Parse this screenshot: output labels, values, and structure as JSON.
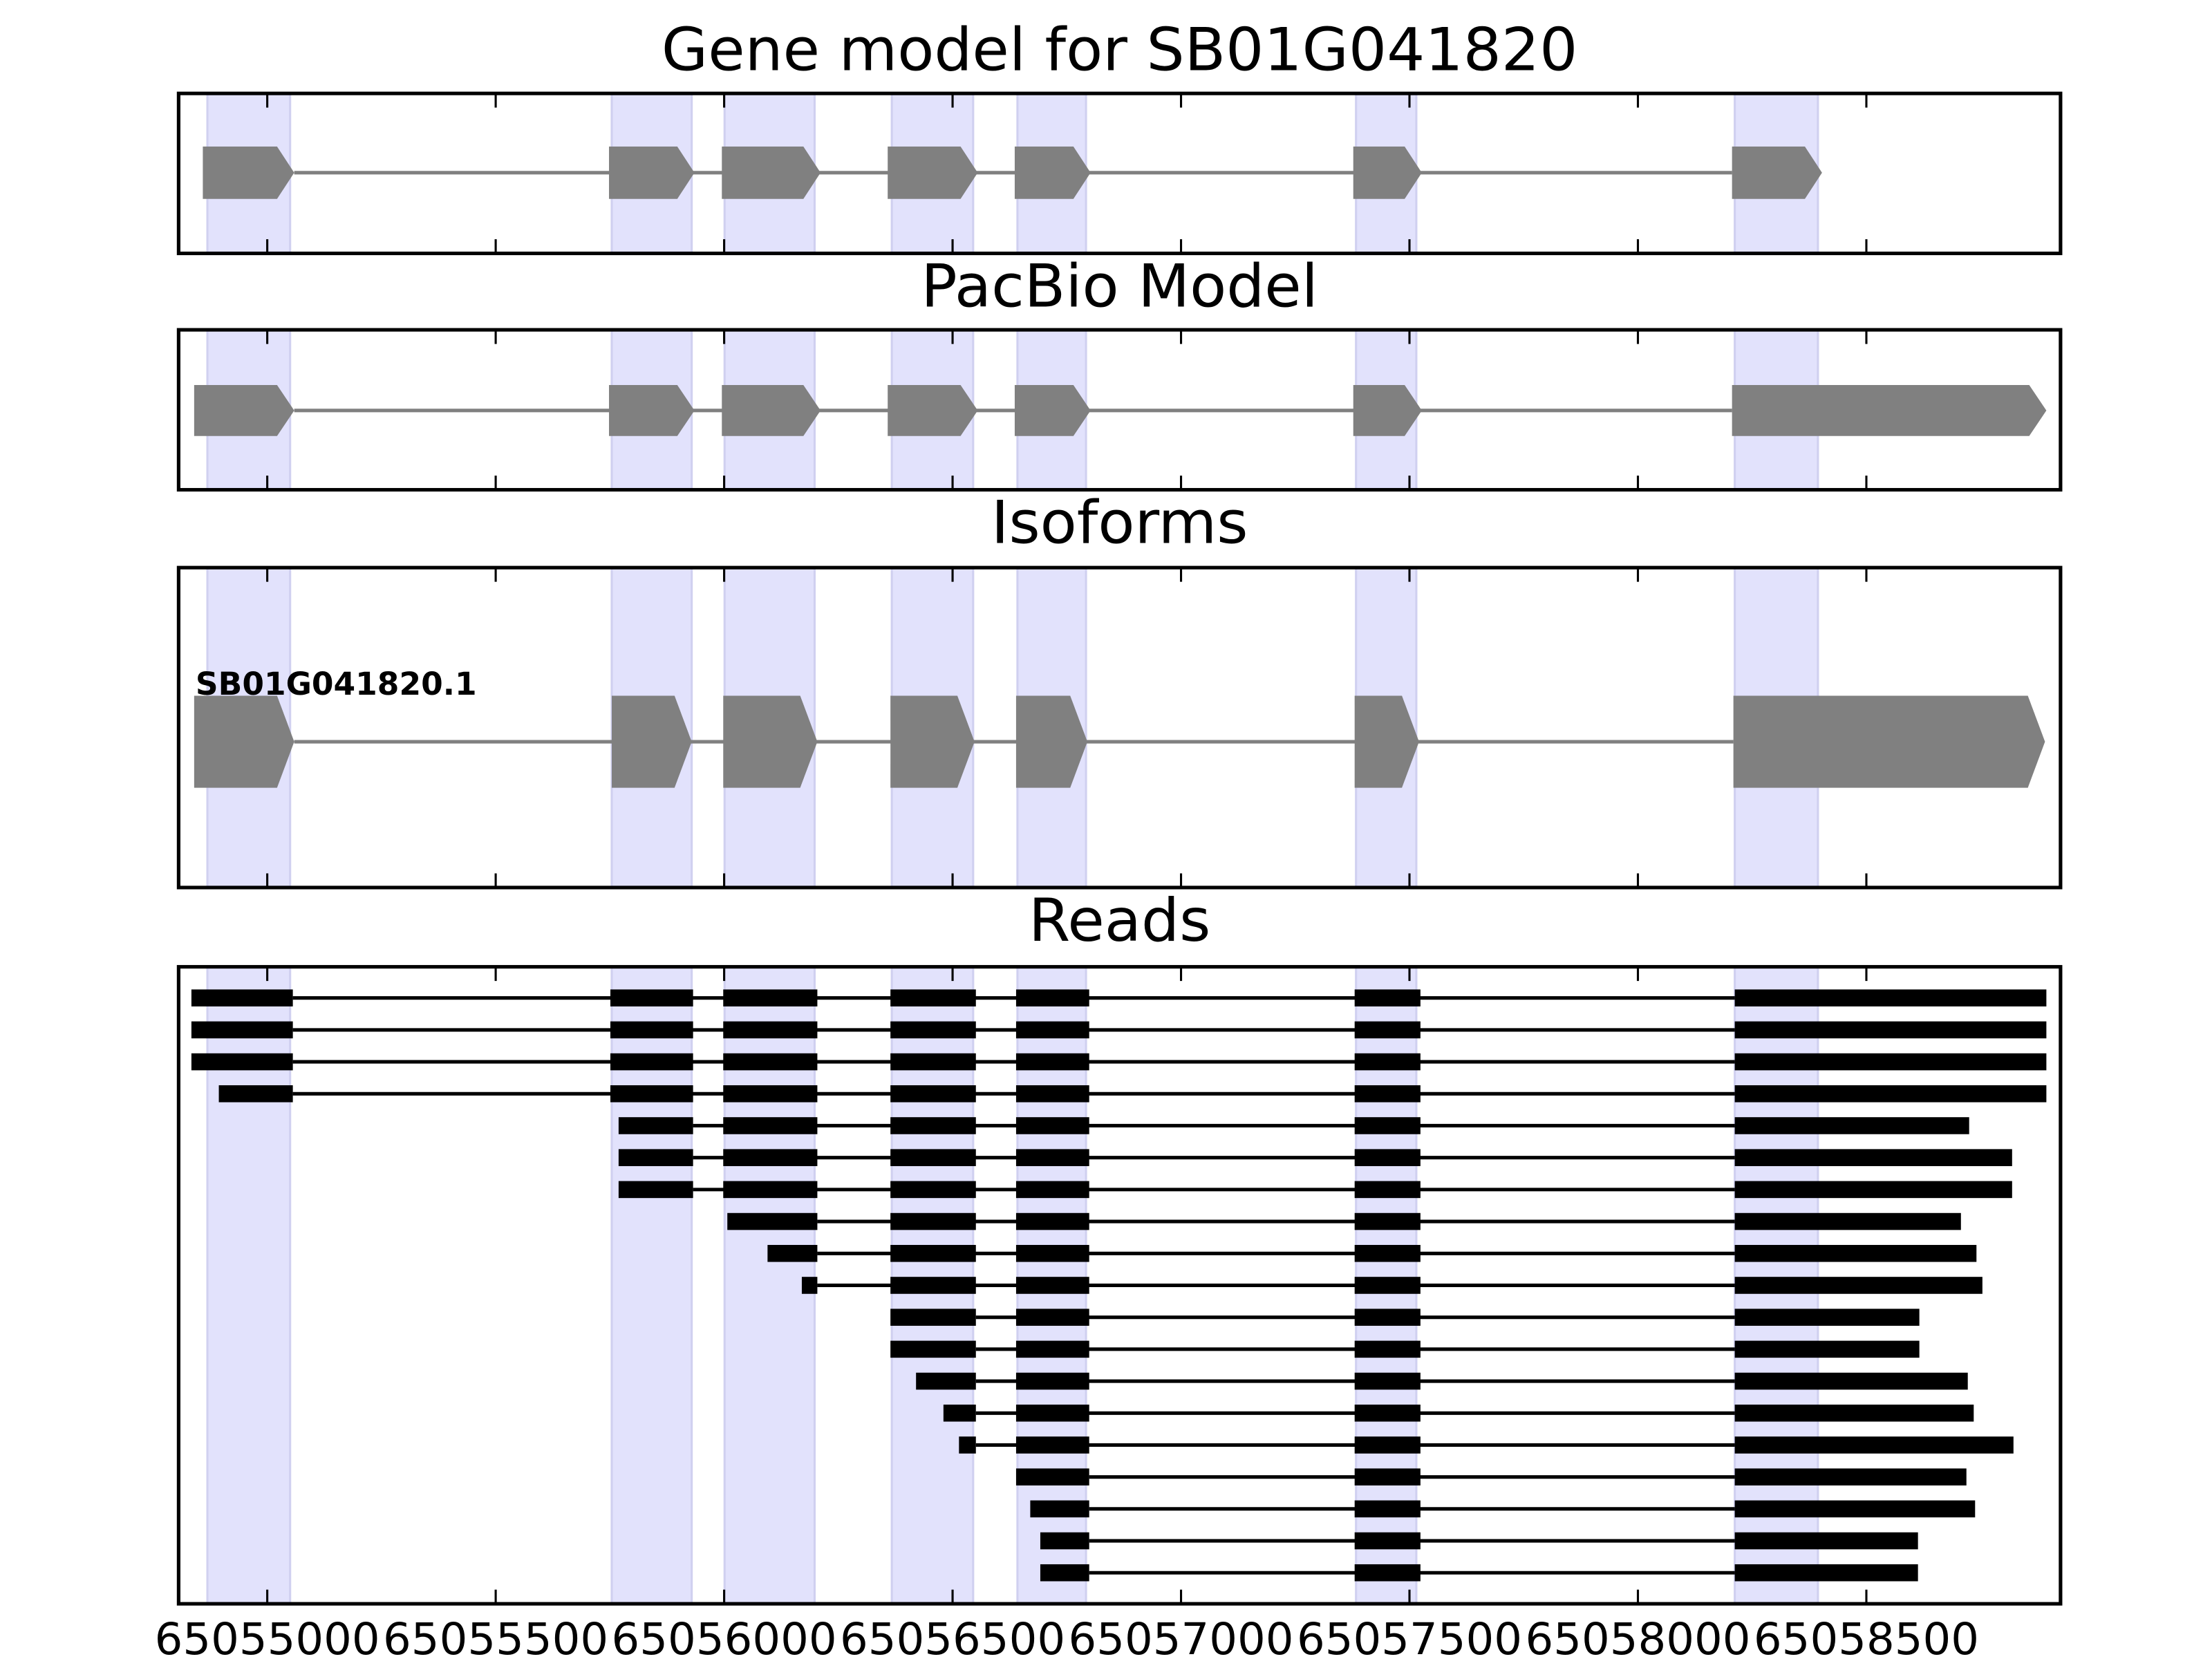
{
  "chart_data": {
    "type": "gene-tracks",
    "xlim": [
      65054806,
      65058925
    ],
    "xticks": [
      65055000,
      65055500,
      65056000,
      65056500,
      65057000,
      65057500,
      65058000,
      65058500
    ],
    "highlights": [
      [
        65054869,
        65055050
      ],
      [
        65055754,
        65055929
      ],
      [
        65056001,
        65056198
      ],
      [
        65056367,
        65056545
      ],
      [
        65056642,
        65056792
      ],
      [
        65057383,
        65057515
      ],
      [
        65058212,
        65058394
      ]
    ],
    "panels": [
      {
        "type": "model",
        "title": "Gene model for SB01G041820",
        "exons": [
          [
            65054859,
            65055059
          ],
          [
            65055748,
            65055935
          ],
          [
            65055995,
            65056211
          ],
          [
            65056358,
            65056555
          ],
          [
            65056636,
            65056802
          ],
          [
            65057377,
            65057527
          ],
          [
            65058206,
            65058403
          ]
        ]
      },
      {
        "type": "model",
        "title": "PacBio Model",
        "exons": [
          [
            65054840,
            65055059
          ],
          [
            65055748,
            65055935
          ],
          [
            65055995,
            65056211
          ],
          [
            65056358,
            65056555
          ],
          [
            65056636,
            65056802
          ],
          [
            65057377,
            65057527
          ],
          [
            65058206,
            65058894
          ]
        ]
      },
      {
        "type": "isoform",
        "title": "Isoforms",
        "label": "SB01G041820.1",
        "exons": [
          [
            65054840,
            65055059
          ],
          [
            65055754,
            65055929
          ],
          [
            65055998,
            65056204
          ],
          [
            65056364,
            65056548
          ],
          [
            65056639,
            65056795
          ],
          [
            65057380,
            65057521
          ],
          [
            65058209,
            65058891
          ]
        ]
      },
      {
        "type": "reads",
        "title": "Reads",
        "reads": [
          [
            [
              65054834,
              65055056
            ],
            [
              65055751,
              65055932
            ],
            [
              65055998,
              65056204
            ],
            [
              65056364,
              65056551
            ],
            [
              65056639,
              65056799
            ],
            [
              65057380,
              65057524
            ],
            [
              65058212,
              65058894
            ]
          ],
          [
            [
              65054834,
              65055056
            ],
            [
              65055751,
              65055932
            ],
            [
              65055998,
              65056204
            ],
            [
              65056364,
              65056551
            ],
            [
              65056639,
              65056799
            ],
            [
              65057380,
              65057524
            ],
            [
              65058212,
              65058894
            ]
          ],
          [
            [
              65054834,
              65055056
            ],
            [
              65055751,
              65055932
            ],
            [
              65055998,
              65056204
            ],
            [
              65056364,
              65056551
            ],
            [
              65056639,
              65056799
            ],
            [
              65057380,
              65057524
            ],
            [
              65058212,
              65058894
            ]
          ],
          [
            [
              65054894,
              65055056
            ],
            [
              65055751,
              65055932
            ],
            [
              65055998,
              65056204
            ],
            [
              65056364,
              65056551
            ],
            [
              65056639,
              65056799
            ],
            [
              65057380,
              65057524
            ],
            [
              65058212,
              65058894
            ]
          ],
          [
            [
              65055769,
              65055932
            ],
            [
              65055998,
              65056204
            ],
            [
              65056364,
              65056551
            ],
            [
              65056639,
              65056799
            ],
            [
              65057380,
              65057524
            ],
            [
              65058212,
              65058725
            ]
          ],
          [
            [
              65055769,
              65055932
            ],
            [
              65055998,
              65056204
            ],
            [
              65056364,
              65056551
            ],
            [
              65056639,
              65056799
            ],
            [
              65057380,
              65057524
            ],
            [
              65058212,
              65058819
            ]
          ],
          [
            [
              65055769,
              65055932
            ],
            [
              65055998,
              65056204
            ],
            [
              65056364,
              65056551
            ],
            [
              65056639,
              65056799
            ],
            [
              65057380,
              65057524
            ],
            [
              65058212,
              65058819
            ]
          ],
          [
            [
              65056007,
              65056204
            ],
            [
              65056364,
              65056551
            ],
            [
              65056639,
              65056799
            ],
            [
              65057380,
              65057524
            ],
            [
              65058212,
              65058707
            ]
          ],
          [
            [
              65056095,
              65056204
            ],
            [
              65056364,
              65056551
            ],
            [
              65056639,
              65056799
            ],
            [
              65057380,
              65057524
            ],
            [
              65058212,
              65058741
            ]
          ],
          [
            [
              65056170,
              65056204
            ],
            [
              65056364,
              65056551
            ],
            [
              65056639,
              65056799
            ],
            [
              65057380,
              65057524
            ],
            [
              65058212,
              65058754
            ]
          ],
          [
            [
              65056364,
              65056551
            ],
            [
              65056639,
              65056799
            ],
            [
              65057380,
              65057524
            ],
            [
              65058212,
              65058616
            ]
          ],
          [
            [
              65056364,
              65056551
            ],
            [
              65056639,
              65056799
            ],
            [
              65057380,
              65057524
            ],
            [
              65058212,
              65058616
            ]
          ],
          [
            [
              65056420,
              65056551
            ],
            [
              65056639,
              65056799
            ],
            [
              65057380,
              65057524
            ],
            [
              65058212,
              65058722
            ]
          ],
          [
            [
              65056480,
              65056551
            ],
            [
              65056639,
              65056799
            ],
            [
              65057380,
              65057524
            ],
            [
              65058212,
              65058735
            ]
          ],
          [
            [
              65056514,
              65056551
            ],
            [
              65056639,
              65056799
            ],
            [
              65057380,
              65057524
            ],
            [
              65058212,
              65058822
            ]
          ],
          [
            [
              65056639,
              65056799
            ],
            [
              65057380,
              65057524
            ],
            [
              65058212,
              65058719
            ]
          ],
          [
            [
              65056670,
              65056799
            ],
            [
              65057380,
              65057524
            ],
            [
              65058212,
              65058738
            ]
          ],
          [
            [
              65056692,
              65056799
            ],
            [
              65057380,
              65057524
            ],
            [
              65058212,
              65058613
            ]
          ],
          [
            [
              65056692,
              65056799
            ],
            [
              65057380,
              65057524
            ],
            [
              65058212,
              65058613
            ]
          ]
        ]
      }
    ]
  }
}
